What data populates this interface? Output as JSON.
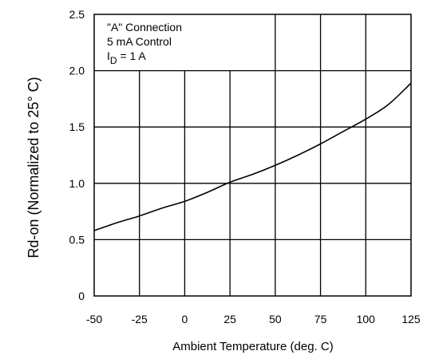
{
  "chart_data": {
    "type": "line",
    "title": "",
    "xlabel": "Ambient Temperature (deg. C)",
    "ylabel": "Rd-on (Normalized to 25° C)",
    "xlim": [
      -50,
      125
    ],
    "ylim": [
      0,
      2.5
    ],
    "x_ticks": [
      -50,
      -25,
      0,
      25,
      50,
      75,
      100,
      125
    ],
    "x_tick_labels": [
      "-50",
      "-25",
      "0",
      "25",
      "50",
      "75",
      "100",
      "125"
    ],
    "y_ticks": [
      0,
      0.5,
      1.0,
      1.5,
      2.0,
      2.5
    ],
    "y_tick_labels": [
      "0",
      "0.5",
      "1.0",
      "1.5",
      "2.0",
      "2.5"
    ],
    "grid": true,
    "annotation": {
      "line1": "\"A\" Connection",
      "line2": "5 mA Control",
      "line3_main": "I",
      "line3_sub": "D",
      "line3_rest": " = 1 A"
    },
    "series": [
      {
        "x": [
          -50,
          -37.5,
          -25,
          -12.5,
          0,
          12.5,
          25,
          37.5,
          50,
          62.5,
          75,
          87.5,
          100,
          112.5,
          125
        ],
        "y": [
          0.58,
          0.65,
          0.71,
          0.78,
          0.84,
          0.92,
          1.01,
          1.08,
          1.16,
          1.25,
          1.35,
          1.46,
          1.57,
          1.7,
          1.89
        ]
      }
    ]
  }
}
